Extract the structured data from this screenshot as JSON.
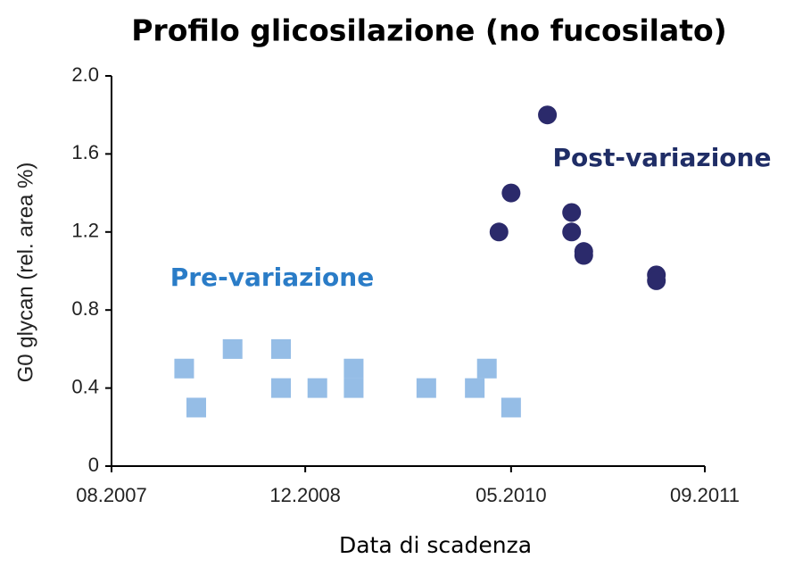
{
  "chart_data": {
    "type": "scatter",
    "title": "Profilo glicosilazione (no fucosilato)",
    "x_label": "Data di scadenza",
    "y_label": "G0 glycan (rel. area %)",
    "xlim": [
      "2007-08",
      "2011-09"
    ],
    "xticks": [
      {
        "value": "2007-08",
        "label": "08.2007"
      },
      {
        "value": "2008-12",
        "label": "12.2008"
      },
      {
        "value": "2010-05",
        "label": "05.2010"
      },
      {
        "value": "2011-09",
        "label": "09.2011"
      }
    ],
    "ylim": [
      0,
      2.0
    ],
    "yticks": [
      0,
      {
        "value": 0.4,
        "label": "0.4"
      },
      {
        "value": 0.8,
        "label": "0.8"
      },
      {
        "value": 1.2,
        "label": "1.2"
      },
      {
        "value": 1.6,
        "label": "1.6"
      },
      {
        "value": 2.0,
        "label": "2.0"
      }
    ],
    "grid": false,
    "series": [
      {
        "name": "Pre-variazione",
        "color": "#95bde6",
        "label_color": "#2a7cc7",
        "marker": "square",
        "x": [
          "2008-02",
          "2008-03",
          "2008-06",
          "2008-10",
          "2008-10",
          "2009-01",
          "2009-04",
          "2009-04",
          "2009-10",
          "2010-02",
          "2010-03",
          "2010-05"
        ],
        "values": [
          0.5,
          0.3,
          0.6,
          0.6,
          0.4,
          0.4,
          0.5,
          0.4,
          0.4,
          0.4,
          0.5,
          0.3
        ]
      },
      {
        "name": "Post-variazione",
        "color": "#2b2a6b",
        "label_color": "#1f2d66",
        "marker": "circle",
        "x": [
          "2010-04",
          "2010-05",
          "2010-08",
          "2010-10",
          "2010-10",
          "2010-11",
          "2010-11",
          "2011-05",
          "2011-05"
        ],
        "values": [
          1.2,
          1.4,
          1.8,
          1.3,
          1.2,
          1.1,
          1.08,
          0.98,
          0.95
        ]
      }
    ]
  }
}
